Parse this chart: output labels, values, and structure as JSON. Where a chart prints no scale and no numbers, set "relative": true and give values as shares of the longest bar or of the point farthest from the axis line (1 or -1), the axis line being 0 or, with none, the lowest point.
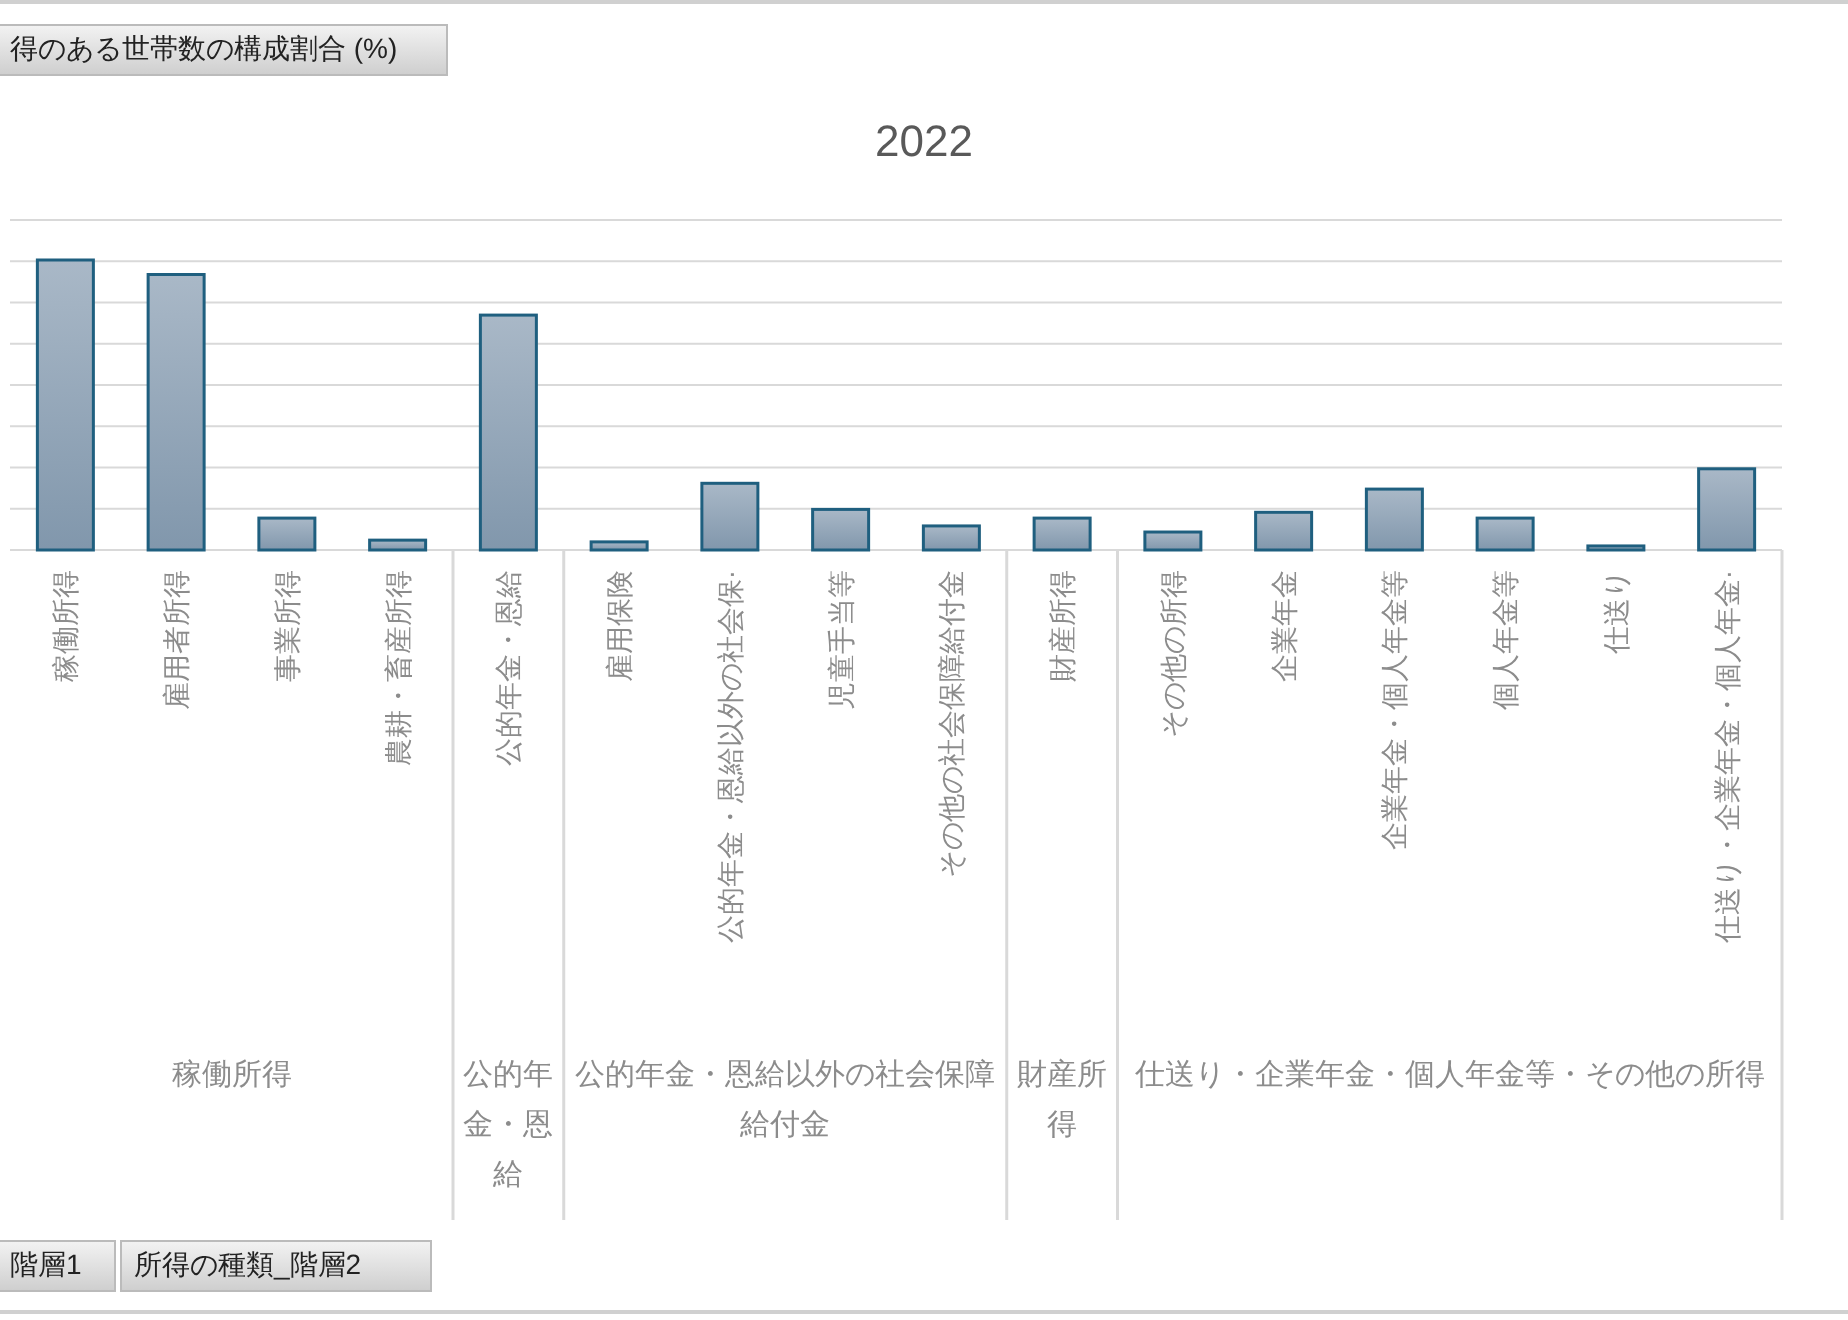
{
  "chart_data": {
    "type": "bar",
    "title": "2022",
    "relative": true,
    "grid": "y",
    "color": "#1f5f7f",
    "categories": [
      "稼働所得",
      "雇用者所得",
      "事業所得",
      "農耕・畜産所得",
      "公的年金・恩給",
      "雇用保険",
      "公的年金・恩給以外の社会保·",
      "児童手当等",
      "その他の社会保障給付金",
      "財産所得",
      "その他の所得",
      "企業年金",
      "企業年金・個人年金等",
      "個人年金等",
      "仕送り",
      "仕送り・企業年金・個人年金·"
    ],
    "values": [
      1,
      0.95,
      0.11,
      0.034,
      0.81,
      0.028,
      0.23,
      0.14,
      0.083,
      0.11,
      0.062,
      0.13,
      0.21,
      0.11,
      0.014,
      0.28
    ],
    "annotations": [
      "稼働所得",
      "公的年金・恩給",
      "公的年金・恩給以外の社会保障給付金",
      "財産所得",
      "仕送り・企業年金・個人年金等・その他の所得",
      "得のある世帯数の構成割合 (%)",
      "階層1",
      "所得の種類_階層2"
    ]
  }
}
